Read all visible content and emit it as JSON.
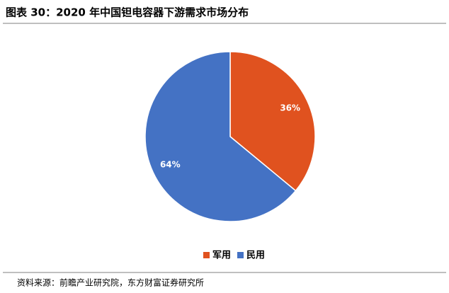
{
  "chart_data": {
    "type": "pie",
    "title": "图表 30：2020 年中国钽电容器下游需求市场分布",
    "categories": [
      "军用",
      "民用"
    ],
    "values": [
      36,
      64
    ],
    "value_labels": [
      "36%",
      "64%"
    ],
    "colors": [
      "#e0521f",
      "#4472c4"
    ],
    "legend": "bottom"
  },
  "source": "资料来源：前瞻产业研究院，东方财富证券研究所"
}
